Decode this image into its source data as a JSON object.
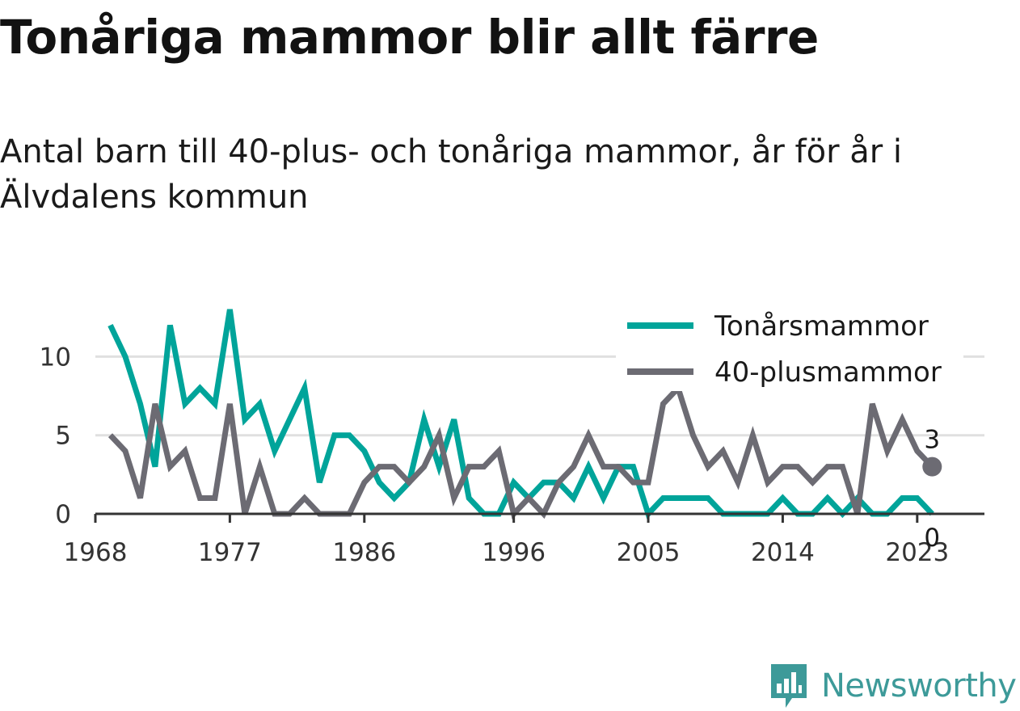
{
  "title": "Tonåriga mammor blir allt färre",
  "subtitle": "Antal barn till 40-plus- och tonåriga mammor, år för år i Älvdalens kommun",
  "brand": {
    "name": "Newsworthy",
    "icon": "newsworthy-logo-icon",
    "color": "#3d9a99"
  },
  "chart_data": {
    "type": "line",
    "x": [
      1969,
      1970,
      1971,
      1972,
      1973,
      1974,
      1975,
      1976,
      1977,
      1978,
      1979,
      1980,
      1981,
      1982,
      1983,
      1984,
      1985,
      1986,
      1987,
      1988,
      1989,
      1990,
      1991,
      1992,
      1993,
      1994,
      1995,
      1996,
      1997,
      1998,
      1999,
      2000,
      2001,
      2002,
      2003,
      2004,
      2005,
      2006,
      2007,
      2008,
      2009,
      2010,
      2011,
      2012,
      2013,
      2014,
      2015,
      2016,
      2017,
      2018,
      2019,
      2020,
      2021,
      2022,
      2023,
      2024
    ],
    "series": [
      {
        "name": "Tonårsmammor",
        "color": "#00a49a",
        "values": [
          12,
          10,
          7,
          3,
          12,
          7,
          8,
          7,
          13,
          6,
          7,
          4,
          6,
          8,
          2,
          5,
          5,
          4,
          2,
          1,
          2,
          6,
          3,
          6,
          1,
          0,
          0,
          2,
          1,
          2,
          2,
          1,
          3,
          1,
          3,
          3,
          0,
          1,
          1,
          1,
          1,
          0,
          0,
          0,
          0,
          1,
          0,
          0,
          1,
          0,
          1,
          0,
          0,
          1,
          1,
          0
        ],
        "end_label": "0"
      },
      {
        "name": "40-plusmammor",
        "color": "#6c6b73",
        "values": [
          5,
          4,
          1,
          7,
          3,
          4,
          1,
          1,
          7,
          0,
          3,
          0,
          0,
          1,
          0,
          0,
          0,
          2,
          3,
          3,
          2,
          3,
          5,
          1,
          3,
          3,
          4,
          0,
          1,
          0,
          2,
          3,
          5,
          3,
          3,
          2,
          2,
          7,
          8,
          5,
          3,
          4,
          2,
          5,
          2,
          3,
          3,
          2,
          3,
          3,
          0,
          7,
          4,
          6,
          4,
          3
        ],
        "end_label": "3"
      }
    ],
    "x_ticks": [
      "1968",
      "1977",
      "1986",
      "1996",
      "2005",
      "2014",
      "2023"
    ],
    "y_ticks": [
      "0",
      "5",
      "10"
    ],
    "xlim": [
      1968,
      2027.5
    ],
    "ylim": [
      0,
      13
    ],
    "grid": true,
    "legend": "top-right"
  }
}
